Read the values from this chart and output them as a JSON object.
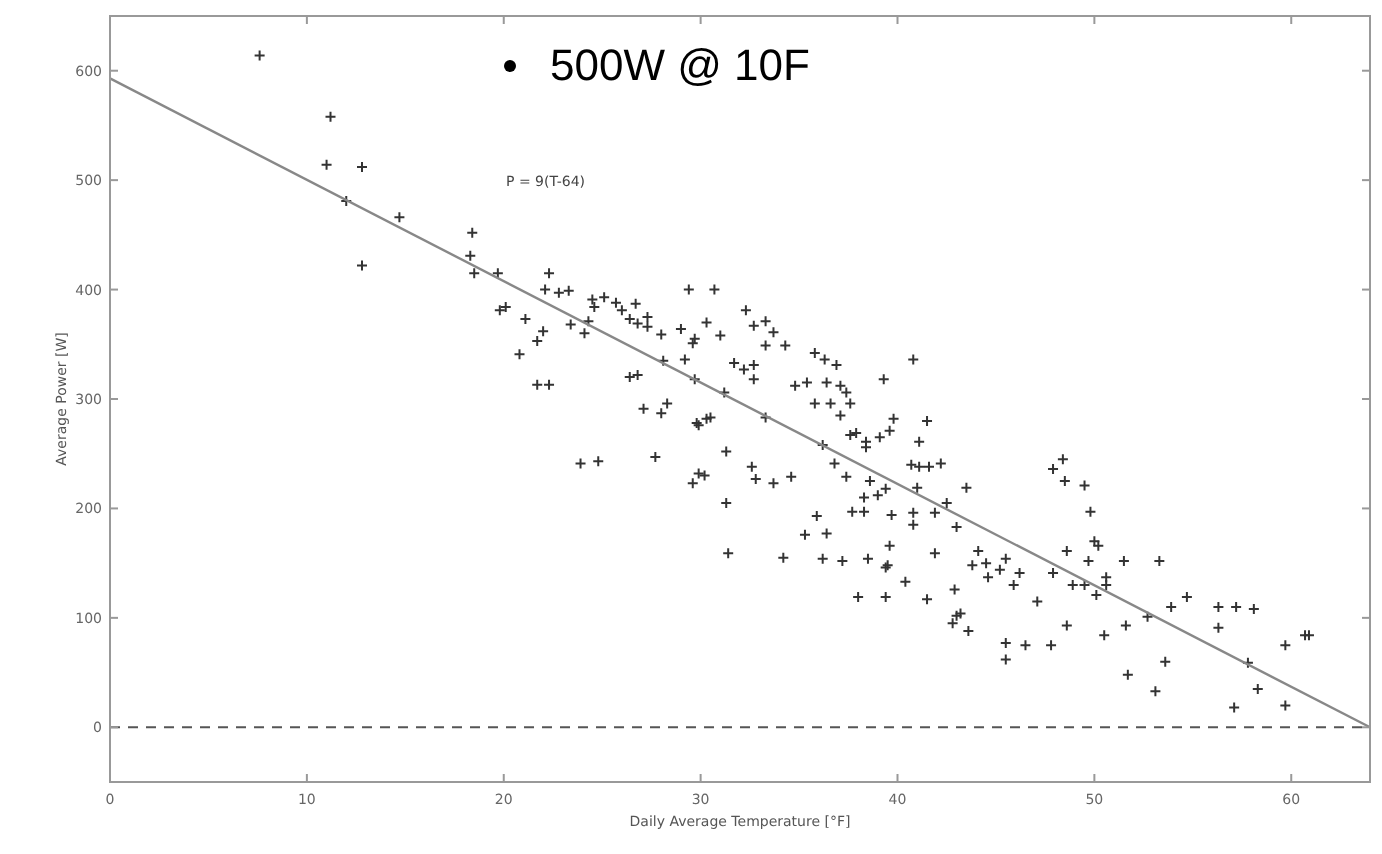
{
  "chart_data": {
    "type": "scatter",
    "xlabel": "Daily Average Temperature [°F]",
    "ylabel": "Average Power [W]",
    "xlim": [
      0,
      64
    ],
    "ylim": [
      -50,
      650
    ],
    "xticks": [
      0,
      10,
      20,
      30,
      40,
      50,
      60
    ],
    "yticks": [
      0,
      100,
      200,
      300,
      400,
      500,
      600
    ],
    "grid": false,
    "annotations": [
      "500W @ 10F",
      "P = 9(T-64)"
    ],
    "ref_lines": [
      {
        "axis": "y",
        "value": 0,
        "line_style": "dashed",
        "color": "#555555"
      }
    ],
    "series": [
      {
        "color": "#333333",
        "marker": "cross",
        "x": [
          7.6,
          11.2,
          11.0,
          12.8,
          12.0,
          12.8,
          14.7,
          18.4,
          18.3,
          18.5,
          19.7,
          19.8,
          20.1,
          21.1,
          20.8,
          21.7,
          22.0,
          21.7,
          22.3,
          22.1,
          22.3,
          22.8,
          23.3,
          23.4,
          24.1,
          24.3,
          24.5,
          24.6,
          25.1,
          25.7,
          26.0,
          26.7,
          26.8,
          26.4,
          27.3,
          27.3,
          26.4,
          26.8,
          28.0,
          29.0,
          29.4,
          28.1,
          29.6,
          28.3,
          27.1,
          28.0,
          23.9,
          24.8,
          27.7,
          29.6,
          29.9,
          29.9,
          30.7,
          32.3,
          33.3,
          30.3,
          31.0,
          32.7,
          29.7,
          33.7,
          33.3,
          34.3,
          35.8,
          36.3,
          36.9,
          32.7,
          31.7,
          32.2,
          29.2,
          34.8,
          35.4,
          36.4,
          37.1,
          37.4,
          32.7,
          31.2,
          29.7,
          33.3,
          35.8,
          36.6,
          37.6,
          39.3,
          40.8,
          39.8,
          41.5,
          30.3,
          29.8,
          30.2,
          31.3,
          31.3,
          31.4,
          32.6,
          32.8,
          33.7,
          34.6,
          34.2,
          35.3,
          35.9,
          36.2,
          36.4,
          36.2,
          36.8,
          37.4,
          37.2,
          37.7,
          38.0,
          38.3,
          38.3,
          38.5,
          38.6,
          39.0,
          39.4,
          39.5,
          39.4,
          39.6,
          39.7,
          39.4,
          40.4,
          40.8,
          40.8,
          40.7,
          41.1,
          41.0,
          41.5,
          41.6,
          41.9,
          41.9,
          42.2,
          42.5,
          42.8,
          42.9,
          43.0,
          43.2,
          43.6,
          43.5,
          43.0,
          43.8,
          44.1,
          44.5,
          44.6,
          45.2,
          45.5,
          45.5,
          45.5,
          45.9,
          46.2,
          46.5,
          47.1,
          47.8,
          47.9,
          47.9,
          48.4,
          48.5,
          48.6,
          48.6,
          48.9,
          49.5,
          49.5,
          49.7,
          49.8,
          50.0,
          50.2,
          50.1,
          50.5,
          50.6,
          50.6,
          51.5,
          51.6,
          51.7,
          52.7,
          53.3,
          53.1,
          53.6,
          53.9,
          54.7,
          56.3,
          56.3,
          57.2,
          57.1,
          57.8,
          58.1,
          58.3,
          59.7,
          59.7,
          60.7,
          60.9,
          30.5,
          37.1,
          37.6,
          37.9,
          38.4,
          38.4,
          39.1,
          39.6,
          41.1
        ],
        "values": [
          614,
          558,
          514,
          512,
          481,
          422,
          466,
          452,
          431,
          415,
          415,
          381,
          384,
          373,
          341,
          353,
          362,
          313,
          313,
          400,
          415,
          397,
          399,
          368,
          360,
          371,
          391,
          384,
          393,
          388,
          381,
          387,
          369,
          373,
          375,
          366,
          320,
          322,
          359,
          364,
          400,
          335,
          351,
          296,
          291,
          287,
          241,
          243,
          247,
          223,
          232,
          276,
          400,
          381,
          371,
          370,
          358,
          367,
          355,
          361,
          349,
          349,
          342,
          336,
          331,
          331,
          333,
          327,
          336,
          312,
          315,
          315,
          312,
          306,
          318,
          306,
          318,
          283,
          296,
          296,
          296,
          318,
          336,
          282,
          280,
          282,
          278,
          230,
          252,
          205,
          159,
          238,
          227,
          223,
          229,
          155,
          176,
          193,
          154,
          177,
          258,
          241,
          229,
          152,
          197,
          119,
          197,
          210,
          154,
          225,
          212,
          146,
          148,
          119,
          166,
          194,
          218,
          133,
          185,
          196,
          240,
          238,
          219,
          117,
          238,
          196,
          159,
          241,
          205,
          95,
          126,
          102,
          104,
          88,
          219,
          183,
          148,
          161,
          150,
          137,
          144,
          77,
          62,
          154,
          130,
          141,
          75,
          115,
          75,
          141,
          236,
          245,
          225,
          161,
          93,
          130,
          130,
          221,
          152,
          197,
          170,
          166,
          121,
          84,
          137,
          130,
          152,
          93,
          48,
          101,
          152,
          33,
          60,
          110,
          119,
          91,
          110,
          110,
          18,
          59,
          108,
          35,
          75,
          20,
          84,
          84,
          283,
          285,
          267,
          269,
          261,
          256,
          265,
          271,
          261
        ]
      },
      {
        "type": "line",
        "color": "#888888",
        "x": [
          0,
          64
        ],
        "values": [
          593,
          0
        ]
      }
    ]
  }
}
